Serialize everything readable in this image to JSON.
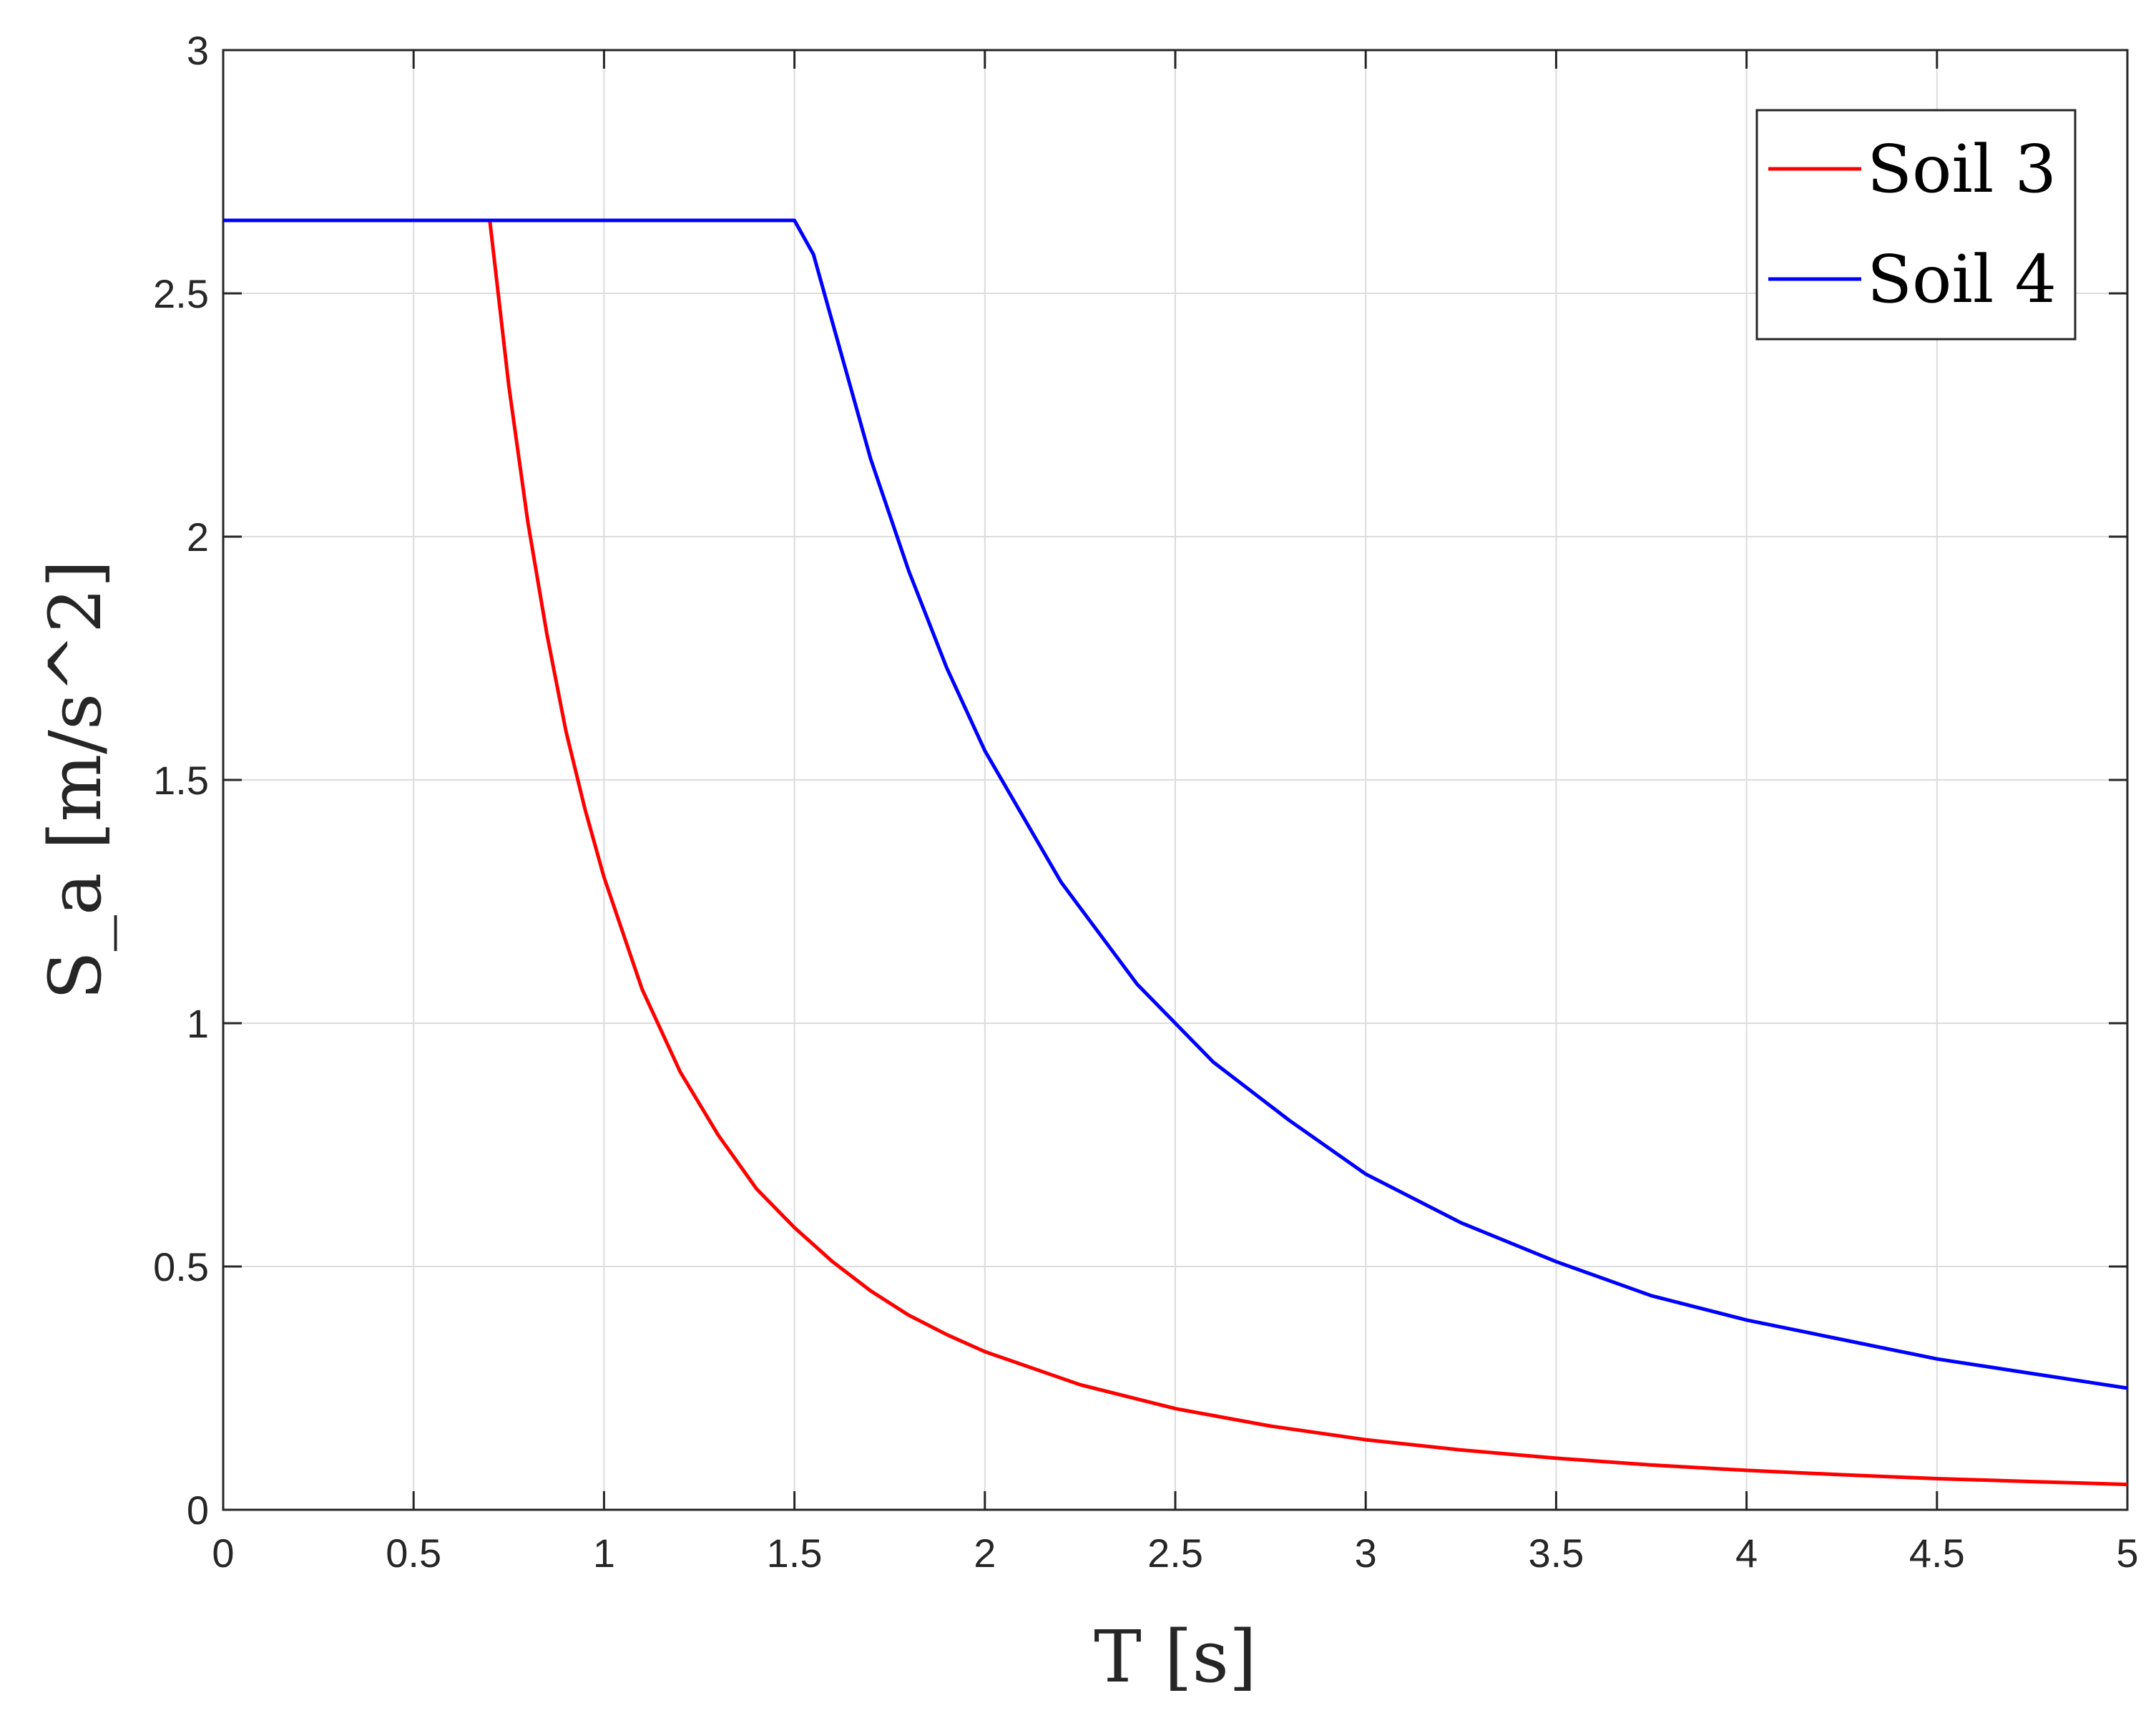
{
  "chart_data": {
    "type": "line",
    "xlabel": "T [s]",
    "ylabel": "S_a [m/s^2]",
    "xlim": [
      0,
      5
    ],
    "ylim": [
      0,
      3
    ],
    "xticks": [
      "0",
      "0.5",
      "1",
      "1.5",
      "2",
      "2.5",
      "3",
      "3.5",
      "4",
      "4.5",
      "5"
    ],
    "yticks": [
      "0",
      "0.5",
      "1",
      "1.5",
      "2",
      "2.5",
      "3"
    ],
    "grid": true,
    "legend_position": "top-right",
    "series": [
      {
        "name": "Soil 3",
        "color": "#ff0000",
        "x": [
          0,
          0.7,
          0.75,
          0.8,
          0.85,
          0.9,
          0.95,
          1.0,
          1.1,
          1.2,
          1.3,
          1.4,
          1.5,
          1.6,
          1.7,
          1.8,
          1.9,
          2.0,
          2.25,
          2.5,
          2.75,
          3.0,
          3.25,
          3.5,
          3.75,
          4.0,
          4.25,
          4.5,
          4.75,
          5.0
        ],
        "y": [
          2.65,
          2.65,
          2.31,
          2.03,
          1.8,
          1.6,
          1.44,
          1.3,
          1.07,
          0.9,
          0.77,
          0.66,
          0.58,
          0.51,
          0.45,
          0.4,
          0.36,
          0.325,
          0.257,
          0.208,
          0.172,
          0.144,
          0.123,
          0.106,
          0.092,
          0.081,
          0.072,
          0.064,
          0.058,
          0.052
        ]
      },
      {
        "name": "Soil 4",
        "color": "#0000ff",
        "x": [
          0,
          1.5,
          1.55,
          1.6,
          1.7,
          1.8,
          1.9,
          2.0,
          2.2,
          2.4,
          2.6,
          2.8,
          3.0,
          3.25,
          3.5,
          3.75,
          4.0,
          4.25,
          4.5,
          4.75,
          5.0
        ],
        "y": [
          2.65,
          2.65,
          2.58,
          2.44,
          2.16,
          1.93,
          1.73,
          1.56,
          1.29,
          1.08,
          0.92,
          0.8,
          0.69,
          0.59,
          0.51,
          0.44,
          0.39,
          0.35,
          0.31,
          0.28,
          0.25
        ]
      }
    ]
  }
}
